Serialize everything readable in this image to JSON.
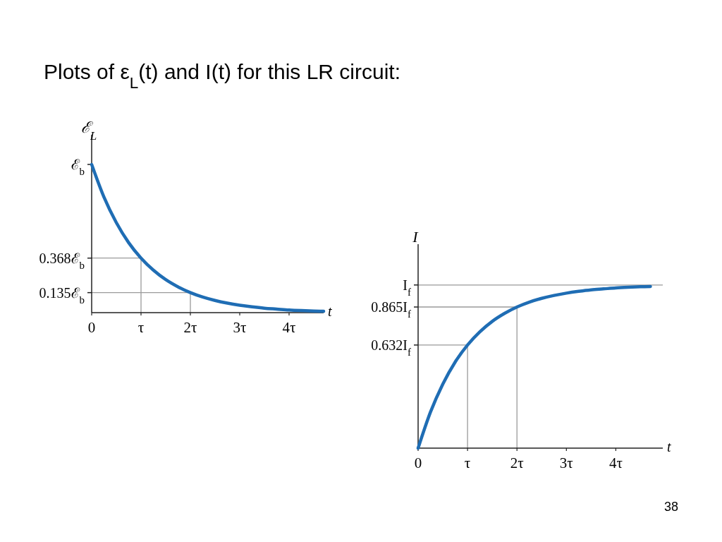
{
  "chart_data": [
    {
      "type": "line",
      "title": "Plots of ε$_{L}$(t) and I(t) for this LR circuit:",
      "xlabel": "t",
      "ylabel": "ℰ$_{L}$",
      "x": [
        0,
        0.25,
        0.5,
        0.75,
        1,
        1.25,
        1.5,
        1.75,
        2,
        2.25,
        2.5,
        2.75,
        3,
        3.25,
        3.5,
        3.75,
        4,
        4.25,
        4.5,
        4.7
      ],
      "series": [
        {
          "color": "#1f6db4",
          "values": [
            1,
            0.779,
            0.607,
            0.472,
            0.368,
            0.287,
            0.223,
            0.174,
            0.135,
            0.105,
            0.082,
            0.064,
            0.05,
            0.039,
            0.03,
            0.024,
            0.018,
            0.014,
            0.011,
            0.009
          ]
        }
      ],
      "xlim": [
        0,
        4.7
      ],
      "ylim": [
        0,
        1.2
      ],
      "xticks": [
        0,
        {
          "value": 1,
          "label": "τ"
        },
        {
          "value": 2,
          "label": "2τ"
        },
        {
          "value": 3,
          "label": "3τ"
        },
        {
          "value": 4,
          "label": "4τ"
        }
      ],
      "yticks": [
        {
          "value": 0.135,
          "label": "0.135ℰ$_{b}$"
        },
        {
          "value": 0.368,
          "label": "0.368ℰ$_{b}$"
        },
        {
          "value": 1,
          "label": "ℰ$_{b}$"
        }
      ],
      "ref_lines": [
        {
          "axis": "y",
          "value": 0.368,
          "color": "#9a9a9a"
        },
        {
          "axis": "x",
          "value": 1,
          "color": "#9a9a9a"
        },
        {
          "axis": "y",
          "value": 0.135,
          "color": "#9a9a9a"
        },
        {
          "axis": "x",
          "value": 2,
          "color": "#9a9a9a"
        }
      ],
      "grid": false,
      "marker": "none",
      "line_style": "solid"
    },
    {
      "type": "line",
      "xlabel": "t",
      "ylabel": "I",
      "annotations": [
        "38"
      ],
      "x": [
        0,
        0.25,
        0.5,
        0.75,
        1,
        1.25,
        1.5,
        1.75,
        2,
        2.25,
        2.5,
        2.75,
        3,
        3.25,
        3.5,
        3.75,
        4,
        4.25,
        4.5,
        4.7
      ],
      "series": [
        {
          "color": "#1f6db4",
          "values": [
            0,
            0.221,
            0.393,
            0.528,
            0.632,
            0.713,
            0.777,
            0.826,
            0.865,
            0.895,
            0.918,
            0.936,
            0.95,
            0.961,
            0.97,
            0.976,
            0.982,
            0.986,
            0.989,
            0.991
          ]
        }
      ],
      "xlim": [
        0,
        4.95
      ],
      "ylim": [
        0,
        1.25
      ],
      "xticks": [
        0,
        {
          "value": 1,
          "label": "τ"
        },
        {
          "value": 2,
          "label": "2τ"
        },
        {
          "value": 3,
          "label": "3τ"
        },
        {
          "value": 4,
          "label": "4τ"
        }
      ],
      "yticks": [
        {
          "value": 0.632,
          "label": "0.632I$_{f}$"
        },
        {
          "value": 0.865,
          "label": "0.865I$_{f}$"
        },
        {
          "value": 1,
          "label": "I$_{f}$"
        }
      ],
      "ref_lines": [
        {
          "axis": "y",
          "value": 1,
          "color": "#9a9a9a"
        },
        {
          "axis": "y",
          "value": 0.865,
          "color": "#9a9a9a"
        },
        {
          "axis": "y",
          "value": 0.632,
          "color": "#9a9a9a"
        },
        {
          "axis": "x",
          "value": 1,
          "color": "#9a9a9a"
        },
        {
          "axis": "x",
          "value": 2,
          "color": "#9a9a9a"
        }
      ],
      "grid": false,
      "marker": "none",
      "line_style": "solid"
    }
  ]
}
